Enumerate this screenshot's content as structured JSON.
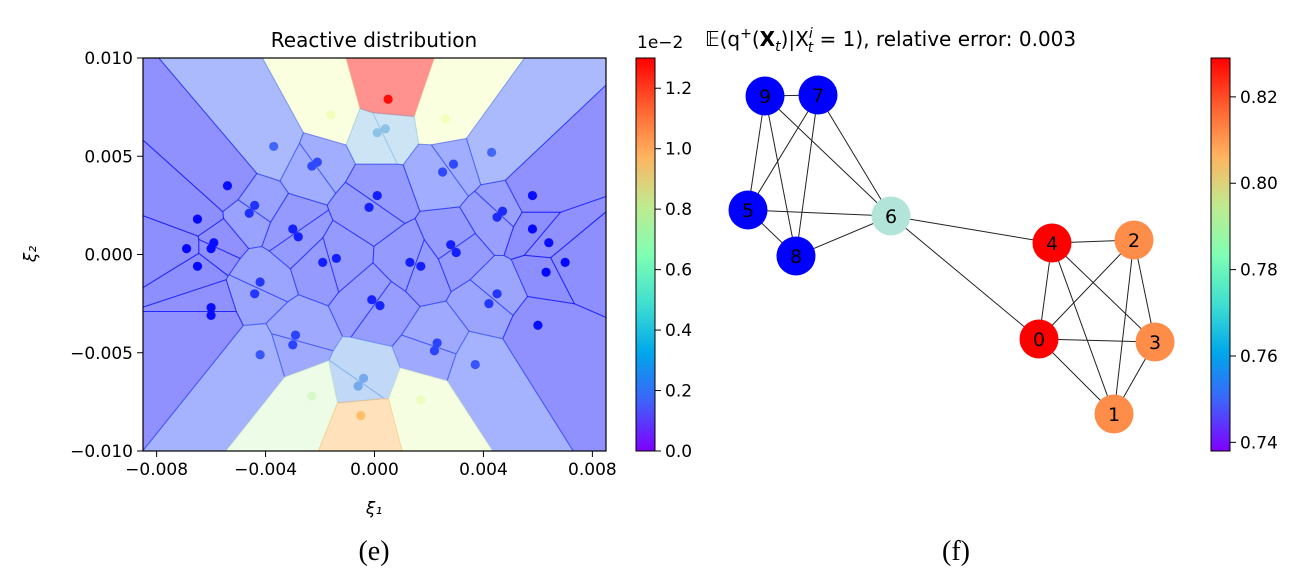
{
  "chart_data": [
    {
      "type": "scatter",
      "subtype": "voronoi-tessellation",
      "title": "Reactive distribution",
      "xlabel": "ξ₁",
      "ylabel": "ξ₂",
      "xlim": [
        -0.0085,
        0.0085
      ],
      "ylim": [
        -0.01,
        0.01
      ],
      "x_ticks": [
        -0.008,
        -0.004,
        0.0,
        0.004,
        0.008
      ],
      "x_tick_labels": [
        "−0.008",
        "−0.004",
        "0.000",
        "0.004",
        "0.008"
      ],
      "y_ticks": [
        0.01,
        0.005,
        0.0,
        -0.005,
        -0.01
      ],
      "y_tick_labels": [
        "0.010",
        "0.005",
        "0.000",
        "−0.005",
        "−0.010"
      ],
      "colorbar": {
        "min": 0.0,
        "max": 1.3,
        "multiplier_label": "1e−2",
        "ticks": [
          0.0,
          0.2,
          0.4,
          0.6,
          0.8,
          1.0,
          1.2
        ],
        "tick_labels": [
          "0.0",
          "0.2",
          "0.4",
          "0.6",
          "0.8",
          "1.0",
          "1.2"
        ]
      },
      "caption": "(e)",
      "points": [
        {
          "x": 0.0005,
          "y": 0.0079,
          "v": 1.28
        },
        {
          "x": -0.0016,
          "y": 0.0071,
          "v": 0.62
        },
        {
          "x": 0.0026,
          "y": 0.0069,
          "v": 0.62
        },
        {
          "x": 0.0004,
          "y": 0.0064,
          "v": 0.36
        },
        {
          "x": 0.0001,
          "y": 0.0062,
          "v": 0.36
        },
        {
          "x": -0.0037,
          "y": 0.0055,
          "v": 0.17
        },
        {
          "x": 0.0043,
          "y": 0.0052,
          "v": 0.17
        },
        {
          "x": -0.0021,
          "y": 0.0047,
          "v": 0.12
        },
        {
          "x": -0.0023,
          "y": 0.0045,
          "v": 0.12
        },
        {
          "x": 0.0029,
          "y": 0.0046,
          "v": 0.12
        },
        {
          "x": 0.0025,
          "y": 0.0042,
          "v": 0.12
        },
        {
          "x": -0.0054,
          "y": 0.0035,
          "v": 0.02
        },
        {
          "x": 0.0058,
          "y": 0.003,
          "v": 0.02
        },
        {
          "x": 0.0001,
          "y": 0.003,
          "v": 0.05
        },
        {
          "x": -0.0002,
          "y": 0.0024,
          "v": 0.05
        },
        {
          "x": -0.0044,
          "y": 0.0025,
          "v": 0.08
        },
        {
          "x": -0.0046,
          "y": 0.0021,
          "v": 0.08
        },
        {
          "x": 0.0047,
          "y": 0.0022,
          "v": 0.07
        },
        {
          "x": 0.0045,
          "y": 0.0019,
          "v": 0.07
        },
        {
          "x": -0.0065,
          "y": 0.0018,
          "v": 0.01
        },
        {
          "x": 0.0058,
          "y": 0.0013,
          "v": 0.01
        },
        {
          "x": -0.003,
          "y": 0.0013,
          "v": 0.05
        },
        {
          "x": -0.0028,
          "y": 0.0009,
          "v": 0.05
        },
        {
          "x": 0.0028,
          "y": 0.0005,
          "v": 0.05
        },
        {
          "x": 0.003,
          "y": 0.0001,
          "v": 0.05
        },
        {
          "x": -0.0059,
          "y": 0.0006,
          "v": 0.02
        },
        {
          "x": -0.006,
          "y": 0.0003,
          "v": 0.02
        },
        {
          "x": 0.0064,
          "y": 0.0006,
          "v": 0.02
        },
        {
          "x": -0.0069,
          "y": 0.0003,
          "v": 0.01
        },
        {
          "x": 0.007,
          "y": -0.0004,
          "v": 0.01
        },
        {
          "x": -0.0014,
          "y": -0.0002,
          "v": 0.05
        },
        {
          "x": -0.0019,
          "y": -0.0004,
          "v": 0.05
        },
        {
          "x": 0.0013,
          "y": -0.0004,
          "v": 0.05
        },
        {
          "x": 0.0017,
          "y": -0.0006,
          "v": 0.05
        },
        {
          "x": -0.0065,
          "y": -0.0006,
          "v": 0.01
        },
        {
          "x": 0.0063,
          "y": -0.0009,
          "v": 0.01
        },
        {
          "x": -0.0042,
          "y": -0.0014,
          "v": 0.09
        },
        {
          "x": -0.0044,
          "y": -0.002,
          "v": 0.09
        },
        {
          "x": 0.0045,
          "y": -0.002,
          "v": 0.09
        },
        {
          "x": 0.0042,
          "y": -0.0025,
          "v": 0.09
        },
        {
          "x": -0.006,
          "y": -0.0027,
          "v": 0.02
        },
        {
          "x": -0.006,
          "y": -0.0031,
          "v": 0.02
        },
        {
          "x": 0.006,
          "y": -0.0036,
          "v": 0.02
        },
        {
          "x": -0.0001,
          "y": -0.0023,
          "v": 0.06
        },
        {
          "x": 0.0002,
          "y": -0.0026,
          "v": 0.06
        },
        {
          "x": -0.0029,
          "y": -0.0041,
          "v": 0.11
        },
        {
          "x": -0.003,
          "y": -0.0046,
          "v": 0.11
        },
        {
          "x": 0.0023,
          "y": -0.0045,
          "v": 0.11
        },
        {
          "x": 0.0022,
          "y": -0.0049,
          "v": 0.11
        },
        {
          "x": -0.0042,
          "y": -0.0051,
          "v": 0.14
        },
        {
          "x": 0.0037,
          "y": -0.0056,
          "v": 0.14
        },
        {
          "x": -0.0004,
          "y": -0.0063,
          "v": 0.3
        },
        {
          "x": -0.0006,
          "y": -0.0067,
          "v": 0.3
        },
        {
          "x": -0.0023,
          "y": -0.0072,
          "v": 0.55
        },
        {
          "x": 0.0017,
          "y": -0.0074,
          "v": 0.6
        },
        {
          "x": -0.0005,
          "y": -0.0082,
          "v": 0.95
        }
      ]
    },
    {
      "type": "network",
      "title_parts": [
        "𝔼(q",
        "+",
        "(",
        "X",
        "t",
        ")|X",
        "i",
        "t",
        " = 1), relative error: 0.003"
      ],
      "colorbar": {
        "min": 0.738,
        "max": 0.829,
        "ticks": [
          0.74,
          0.76,
          0.78,
          0.8,
          0.82
        ],
        "tick_labels": [
          "0.74",
          "0.76",
          "0.78",
          "0.80",
          "0.82"
        ]
      },
      "caption": "(f)",
      "nodes": [
        {
          "id": "0",
          "value": 0.829
        },
        {
          "id": "1",
          "value": 0.812
        },
        {
          "id": "2",
          "value": 0.812
        },
        {
          "id": "3",
          "value": 0.812
        },
        {
          "id": "4",
          "value": 0.829
        },
        {
          "id": "5",
          "value": 0.738
        },
        {
          "id": "6",
          "value": 0.77
        },
        {
          "id": "7",
          "value": 0.738
        },
        {
          "id": "8",
          "value": 0.738
        },
        {
          "id": "9",
          "value": 0.738
        }
      ],
      "edges": [
        [
          "9",
          "7"
        ],
        [
          "9",
          "5"
        ],
        [
          "9",
          "8"
        ],
        [
          "9",
          "6"
        ],
        [
          "7",
          "5"
        ],
        [
          "7",
          "8"
        ],
        [
          "7",
          "6"
        ],
        [
          "5",
          "8"
        ],
        [
          "5",
          "6"
        ],
        [
          "8",
          "6"
        ],
        [
          "6",
          "4"
        ],
        [
          "6",
          "0"
        ],
        [
          "4",
          "2"
        ],
        [
          "4",
          "0"
        ],
        [
          "4",
          "3"
        ],
        [
          "4",
          "1"
        ],
        [
          "2",
          "0"
        ],
        [
          "2",
          "3"
        ],
        [
          "2",
          "1"
        ],
        [
          "0",
          "3"
        ],
        [
          "0",
          "1"
        ],
        [
          "3",
          "1"
        ]
      ]
    }
  ]
}
